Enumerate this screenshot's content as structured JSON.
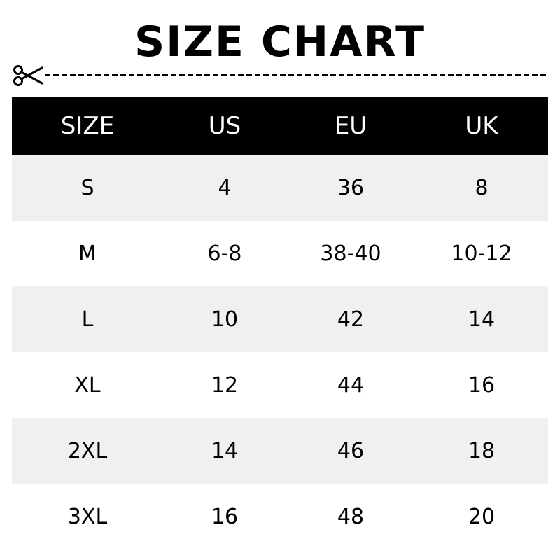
{
  "title": "SIZE CHART",
  "cut_line_icon": "scissors-icon",
  "table": {
    "headers": [
      "SIZE",
      "US",
      "EU",
      "UK"
    ],
    "rows": [
      [
        "S",
        "4",
        "36",
        "8"
      ],
      [
        "M",
        "6-8",
        "38-40",
        "10-12"
      ],
      [
        "L",
        "10",
        "42",
        "14"
      ],
      [
        "XL",
        "12",
        "44",
        "16"
      ],
      [
        "2XL",
        "14",
        "46",
        "18"
      ],
      [
        "3XL",
        "16",
        "48",
        "20"
      ]
    ]
  },
  "colors": {
    "header_bg": "#000000",
    "header_text": "#ffffff",
    "stripe": "#f0f0f0"
  }
}
